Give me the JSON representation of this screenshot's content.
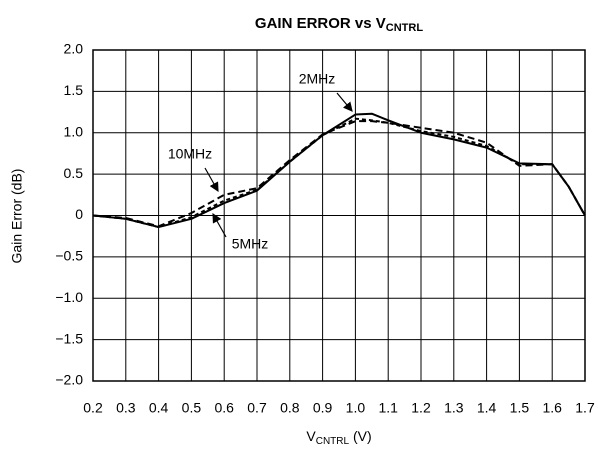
{
  "chart_data": {
    "type": "line",
    "title": {
      "text": "GAIN ERROR vs V",
      "subscript": "CNTRL"
    },
    "x_label": {
      "text": "V",
      "subscript": "CNTRL",
      "suffix": " (V)"
    },
    "y_label": "Gain Error (dB)",
    "x": [
      0.2,
      0.3,
      0.4,
      0.5,
      0.6,
      0.7,
      0.8,
      0.9,
      1.0,
      1.05,
      1.1,
      1.2,
      1.3,
      1.4,
      1.5,
      1.6,
      1.65,
      1.7
    ],
    "series": [
      {
        "name": "2MHz",
        "color": "#000000",
        "dash": "none",
        "values": [
          0,
          -0.04,
          -0.14,
          -0.04,
          0.15,
          0.3,
          0.65,
          0.97,
          1.22,
          1.23,
          1.15,
          1.0,
          0.92,
          0.82,
          0.63,
          0.62,
          0.35,
          0
        ]
      },
      {
        "name": "5MHz",
        "color": "#000000",
        "dash": "4,3",
        "values": [
          0,
          -0.04,
          -0.14,
          -0.02,
          0.18,
          0.31,
          0.65,
          0.97,
          1.17,
          1.15,
          1.12,
          1.02,
          0.95,
          0.84,
          0.62,
          0.62,
          0.35,
          0
        ]
      },
      {
        "name": "10MHz",
        "color": "#000000",
        "dash": "7,4",
        "values": [
          0,
          -0.03,
          -0.13,
          0.03,
          0.25,
          0.33,
          0.67,
          0.98,
          1.14,
          1.14,
          1.12,
          1.06,
          1.0,
          0.88,
          0.6,
          0.62,
          0.35,
          0
        ]
      }
    ],
    "annotations": [
      "2MHz",
      "10MHz",
      "5MHz"
    ],
    "xlim": [
      0.2,
      1.7
    ],
    "xticks": [
      0.2,
      0.3,
      0.4,
      0.5,
      0.6,
      0.7,
      0.8,
      0.9,
      {
        "value": 1.0,
        "label": "1.0"
      },
      1.1,
      1.2,
      1.3,
      1.4,
      1.5,
      1.6,
      1.7
    ],
    "ylim": [
      -2,
      2
    ],
    "yticks": [
      {
        "value": -2,
        "label": "−2.0"
      },
      {
        "value": -1.5,
        "label": "−1.5"
      },
      {
        "value": -1,
        "label": "−1.0"
      },
      {
        "value": -0.5,
        "label": "−0.5"
      },
      0,
      0.5,
      {
        "value": 1,
        "label": "1.0"
      },
      1.5,
      {
        "value": 2,
        "label": "2.0"
      }
    ],
    "grid": true
  }
}
